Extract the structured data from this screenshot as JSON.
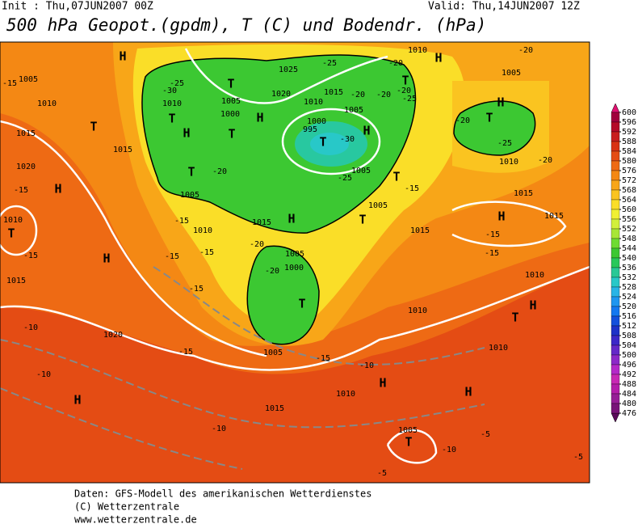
{
  "header": {
    "init": "Init : Thu,07JUN2007 00Z",
    "valid": "Valid: Thu,14JUN2007 12Z",
    "title": "500 hPa Geopot.(gpdm), T (C) und Bodendr. (hPa)"
  },
  "colorbar": {
    "ticks": [
      600,
      596,
      592,
      588,
      584,
      580,
      576,
      572,
      568,
      564,
      560,
      556,
      552,
      548,
      544,
      540,
      536,
      532,
      528,
      524,
      520,
      516,
      512,
      508,
      504,
      500,
      496,
      492,
      488,
      484,
      480,
      476
    ],
    "colors": [
      "#a0003c",
      "#b40a28",
      "#c81e1e",
      "#d83214",
      "#e44c14",
      "#ee6a14",
      "#f48814",
      "#f8a618",
      "#fac420",
      "#fade28",
      "#f0f032",
      "#d2f03c",
      "#a8e636",
      "#6edc32",
      "#3cc832",
      "#28c85a",
      "#28c896",
      "#28c8c8",
      "#28b4e6",
      "#1e96f0",
      "#1478f0",
      "#1450dc",
      "#1e32c8",
      "#3c28c8",
      "#6428c8",
      "#8c28c8",
      "#b428c8",
      "#c828b4",
      "#b41eaa",
      "#961e96",
      "#781478"
    ]
  },
  "map": {
    "labels": [
      "H",
      "H",
      "1010",
      "1005",
      "-20",
      "1005",
      "-15",
      "1010",
      "T",
      "1015",
      "1015",
      "1020",
      "-15",
      "H",
      "1010",
      "T",
      "-15",
      "H",
      "1015",
      "-10",
      "1020",
      "-10",
      "H",
      "-10",
      "1015",
      "1005",
      "-15",
      "-15",
      "-15",
      "-15",
      "1010",
      "-15",
      "1005",
      "1015",
      "H",
      "-20",
      "T",
      "1000",
      "1005",
      "-20",
      "1010",
      "1015",
      "995",
      "1000",
      "T",
      "-30",
      "-25",
      "1005",
      "T",
      "-15",
      "1005",
      "T",
      "1020",
      "1025",
      "-25",
      "T",
      "T",
      "1005",
      "1000",
      "-20",
      "T",
      "H",
      "T",
      "1010",
      "-25",
      "-30",
      "T",
      "-20",
      "-20",
      "-20",
      "-25",
      "-20",
      "1005",
      "H",
      "H",
      "H",
      "T",
      "-20",
      "-25",
      "1010",
      "-20",
      "1015",
      "1015",
      "H",
      "-15",
      "-15",
      "1010",
      "1010",
      "T",
      "H",
      "1010",
      "H",
      "H",
      "1010",
      "-15",
      "-10",
      "1005",
      "T",
      "-10",
      "-5",
      "-5",
      "-5",
      "1015"
    ]
  },
  "footer": {
    "line1": "Daten: GFS-Modell des amerikanischen Wetterdienstes",
    "line2": "(C) Wetterzentrale",
    "line3": "www.wetterzentrale.de"
  }
}
